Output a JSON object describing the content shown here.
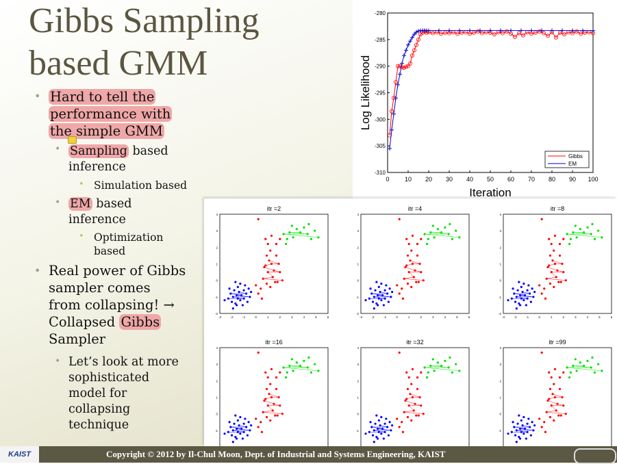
{
  "slide": {
    "title_line1": "Gibbs Sampling",
    "title_line2": "based GMM",
    "b1": [
      "Hard to tell the",
      "performance with",
      "the simple GMM"
    ],
    "b1_1": {
      "hl": "Sampling",
      "rest": " based",
      "line2": "inference"
    },
    "b1_1_1": "Simulation based",
    "b1_2": {
      "hl": "EM",
      "rest": " based",
      "line2": "inference"
    },
    "b1_2_1": [
      "Optimization",
      "based"
    ],
    "b2": {
      "l1": "Real power of Gibbs",
      "l2": "sampler comes",
      "l3": "from collapsing! →",
      "l4a": "Collapsed ",
      "l4hl": "Gibbs",
      "l5": "Sampler"
    },
    "b2_1": [
      "Let’s look at more",
      "sophisticated",
      "model for",
      "collapsing",
      "technique"
    ],
    "footer_logo": "KAIST",
    "copyright": "Copyright © 2012 by Il-Chul Moon, Dept. of Industrial and Systems Engineering, KAIST"
  },
  "chart_data": [
    {
      "type": "line",
      "xlabel": "Iteration",
      "ylabel": "Log Likelihood",
      "xlim": [
        0,
        100
      ],
      "ylim": [
        -310,
        -280
      ],
      "xticks": [
        0,
        10,
        20,
        30,
        40,
        50,
        60,
        70,
        80,
        90,
        100
      ],
      "yticks": [
        -280,
        -285,
        -290,
        -295,
        -300,
        -305,
        -310
      ],
      "legend": "bottom-right",
      "series": [
        {
          "name": "Gibbs",
          "color": "#ff0000",
          "marker": "circle",
          "x": [
            1,
            2,
            3,
            4,
            5,
            6,
            7,
            8,
            9,
            10,
            11,
            12,
            13,
            14,
            15,
            16,
            17,
            18,
            19,
            20,
            22,
            24,
            26,
            28,
            30,
            32,
            34,
            36,
            38,
            40,
            42,
            44,
            46,
            48,
            50,
            52,
            54,
            56,
            58,
            60,
            62,
            64,
            66,
            68,
            70,
            72,
            74,
            76,
            78,
            80,
            82,
            84,
            86,
            88,
            90,
            92,
            94,
            96,
            98,
            100
          ],
          "y": [
            -303,
            -298.5,
            -296,
            -293,
            -290,
            -290,
            -290.2,
            -290.3,
            -290.1,
            -290,
            -289.5,
            -288,
            -287,
            -286,
            -285,
            -284,
            -283.7,
            -283.5,
            -283.7,
            -283.6,
            -283.8,
            -283.6,
            -283.9,
            -283.7,
            -283.8,
            -283.6,
            -283.9,
            -283.7,
            -283.6,
            -283.9,
            -283.7,
            -283.5,
            -283.8,
            -283.6,
            -283.7,
            -284,
            -283.6,
            -283.8,
            -283.5,
            -283.9,
            -284.5,
            -283.8,
            -284.2,
            -283.6,
            -283.9,
            -283.7,
            -283.5,
            -283.8,
            -284.3,
            -283.6,
            -284.6,
            -283.7,
            -284,
            -283.6,
            -283.8,
            -283.5,
            -283.9,
            -283.7,
            -283.6,
            -283.8
          ]
        },
        {
          "name": "EM",
          "color": "#0000cc",
          "marker": "plus",
          "x": [
            1,
            2,
            3,
            4,
            5,
            6,
            7,
            8,
            9,
            10,
            11,
            12,
            13,
            14,
            15,
            16,
            17,
            18,
            19,
            20,
            25,
            30,
            35,
            40,
            45,
            50,
            55,
            60,
            65,
            70,
            75,
            80,
            85,
            90,
            95,
            100
          ],
          "y": [
            -305.5,
            -302,
            -299,
            -296,
            -293.5,
            -291.5,
            -289.5,
            -288,
            -287,
            -286,
            -285.3,
            -284.6,
            -284,
            -283.6,
            -283.4,
            -283.3,
            -283.3,
            -283.3,
            -283.3,
            -283.3,
            -283.3,
            -283.3,
            -283.3,
            -283.3,
            -283.3,
            -283.3,
            -283.3,
            -283.3,
            -283.3,
            -283.3,
            -283.3,
            -283.3,
            -283.3,
            -283.3,
            -283.3,
            -283.3
          ]
        }
      ]
    },
    {
      "type": "scatter",
      "panels": [
        "itr =2",
        "itr =4",
        "itr =8",
        "itr =16",
        "itr =32",
        "itr =99"
      ],
      "xlim": [
        -3,
        6
      ],
      "ylim": [
        -2,
        4
      ],
      "xticks": [
        -3,
        -2,
        -1,
        0,
        1,
        2,
        3,
        4,
        5,
        6
      ],
      "yticks": [
        -2,
        -1,
        0,
        1,
        2,
        3,
        4
      ],
      "clusters": [
        {
          "color": "#0000ff",
          "points": [
            [
              -2.6,
              -1.2
            ],
            [
              -2.3,
              -1.1
            ],
            [
              -2.1,
              -0.8
            ],
            [
              -2.0,
              -1.3
            ],
            [
              -1.9,
              -1.0
            ],
            [
              -1.8,
              -0.6
            ],
            [
              -1.7,
              -1.4
            ],
            [
              -1.6,
              -0.9
            ],
            [
              -1.5,
              -1.1
            ],
            [
              -1.5,
              -0.4
            ],
            [
              -1.4,
              -0.7
            ],
            [
              -1.3,
              -1.2
            ],
            [
              -1.3,
              -0.2
            ],
            [
              -1.2,
              -0.9
            ],
            [
              -1.1,
              -1.5
            ],
            [
              -1.0,
              -0.6
            ],
            [
              -1.0,
              -1.1
            ],
            [
              -0.9,
              -0.3
            ],
            [
              -0.8,
              -0.8
            ],
            [
              -0.7,
              -1.3
            ],
            [
              -0.6,
              -0.5
            ],
            [
              -0.5,
              -1.0
            ],
            [
              -1.7,
              -0.1
            ],
            [
              -1.9,
              -1.7
            ],
            [
              -0.4,
              -0.7
            ],
            [
              -2.2,
              -0.5
            ],
            [
              -1.6,
              -1.5
            ]
          ]
        },
        {
          "color": "#ff0000",
          "points": [
            [
              0.2,
              3.7
            ],
            [
              0.8,
              2.5
            ],
            [
              1.0,
              2.2
            ],
            [
              1.2,
              1.8
            ],
            [
              0.9,
              1.5
            ],
            [
              1.1,
              1.2
            ],
            [
              1.3,
              1.0
            ],
            [
              0.7,
              0.8
            ],
            [
              1.0,
              0.5
            ],
            [
              1.5,
              0.6
            ],
            [
              1.4,
              0.2
            ],
            [
              0.6,
              0.1
            ],
            [
              0.9,
              -0.2
            ],
            [
              1.2,
              -0.4
            ],
            [
              0.4,
              -0.5
            ],
            [
              0.2,
              -0.8
            ],
            [
              0.5,
              -1.1
            ],
            [
              1.7,
              1.5
            ],
            [
              1.9,
              1.0
            ],
            [
              2.0,
              0.5
            ],
            [
              2.2,
              0.0
            ],
            [
              1.6,
              -0.1
            ],
            [
              1.3,
              2.7
            ],
            [
              0.8,
              0.9
            ],
            [
              1.7,
              2.2
            ],
            [
              2.0,
              2.5
            ],
            [
              0.0,
              -0.3
            ],
            [
              1.8,
              -0.1
            ]
          ]
        },
        {
          "color": "#00e000",
          "points": [
            [
              2.3,
              2.8
            ],
            [
              2.6,
              2.5
            ],
            [
              2.8,
              2.9
            ],
            [
              3.1,
              2.6
            ],
            [
              3.4,
              3.1
            ],
            [
              3.7,
              2.9
            ],
            [
              4.0,
              3.2
            ],
            [
              4.3,
              2.8
            ],
            [
              4.6,
              2.5
            ],
            [
              4.9,
              3.0
            ],
            [
              5.2,
              2.6
            ],
            [
              2.5,
              2.2
            ],
            [
              4.4,
              3.4
            ],
            [
              3.0,
              3.3
            ]
          ]
        }
      ]
    }
  ]
}
